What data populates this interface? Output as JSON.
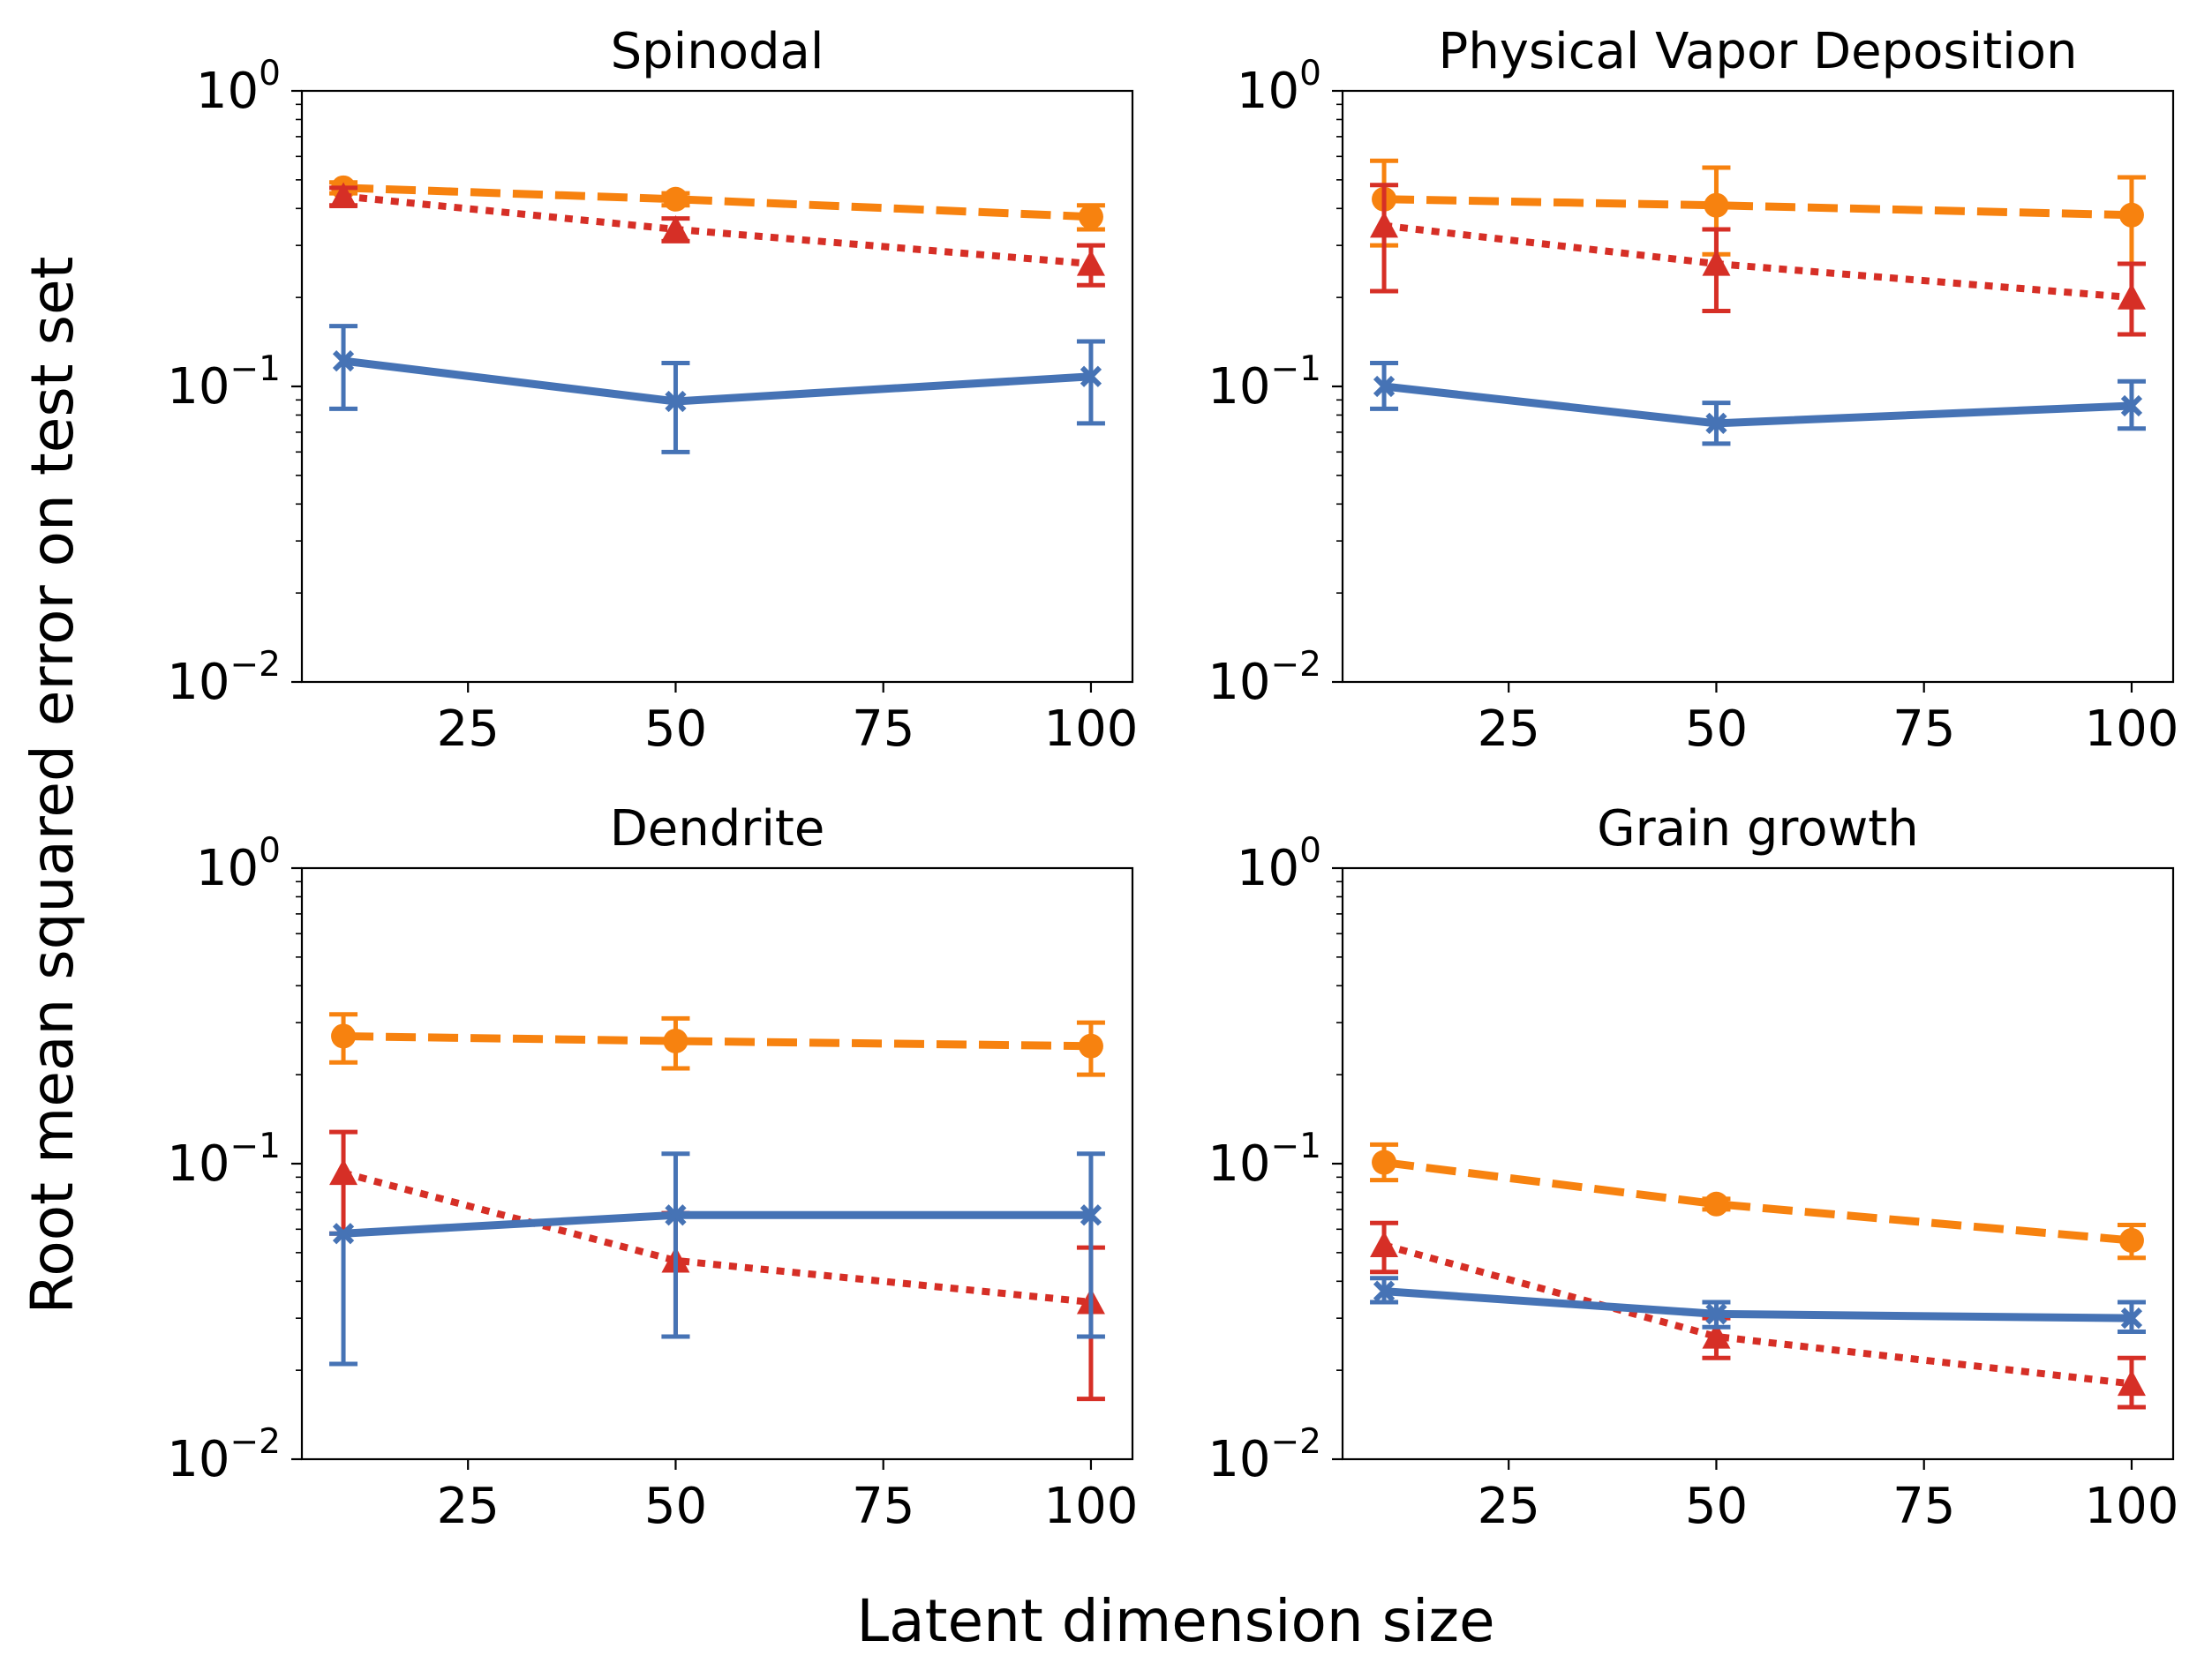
{
  "figure": {
    "xlabel": "Latent dimension size",
    "ylabel": "Root mean squared error on test set"
  },
  "chart_data": [
    {
      "type": "line",
      "title": "Spinodal",
      "xlabel": "",
      "ylabel": "",
      "x": [
        10,
        50,
        100
      ],
      "xlim": [
        5,
        105
      ],
      "xticks": [
        25,
        50,
        75,
        100
      ],
      "ylim": [
        0.01,
        1
      ],
      "yscale": "log",
      "yticks": [
        "10^0",
        "10^-1",
        "10^-2"
      ],
      "grid": false,
      "series": [
        {
          "color": "#f7820f",
          "marker": "circle",
          "linestyle": "dashed",
          "values": [
            0.47,
            0.43,
            0.375
          ],
          "err_low": [
            0.45,
            0.41,
            0.34
          ],
          "err_high": [
            0.49,
            0.45,
            0.41
          ]
        },
        {
          "color": "#d62f26",
          "marker": "triangle",
          "linestyle": "dotted",
          "values": [
            0.44,
            0.34,
            0.26
          ],
          "err_low": [
            0.41,
            0.31,
            0.22
          ],
          "err_high": [
            0.47,
            0.37,
            0.3
          ]
        },
        {
          "color": "#4673b5",
          "marker": "x",
          "linestyle": "solid",
          "values": [
            0.122,
            0.089,
            0.108
          ],
          "err_low": [
            0.084,
            0.06,
            0.075
          ],
          "err_high": [
            0.16,
            0.12,
            0.142
          ]
        }
      ]
    },
    {
      "type": "line",
      "title": "Physical Vapor Deposition",
      "xlabel": "",
      "ylabel": "",
      "x": [
        10,
        50,
        100
      ],
      "xlim": [
        5,
        105
      ],
      "xticks": [
        25,
        50,
        75,
        100
      ],
      "ylim": [
        0.01,
        1
      ],
      "yscale": "log",
      "yticks": [
        "10^0",
        "10^-1",
        "10^-2"
      ],
      "grid": false,
      "series": [
        {
          "color": "#f7820f",
          "marker": "circle",
          "linestyle": "dashed",
          "values": [
            0.43,
            0.41,
            0.38
          ],
          "err_low": [
            0.3,
            0.28,
            0.26
          ],
          "err_high": [
            0.58,
            0.55,
            0.51
          ]
        },
        {
          "color": "#d62f26",
          "marker": "triangle",
          "linestyle": "dotted",
          "values": [
            0.35,
            0.26,
            0.2
          ],
          "err_low": [
            0.21,
            0.18,
            0.15
          ],
          "err_high": [
            0.48,
            0.34,
            0.26
          ]
        },
        {
          "color": "#4673b5",
          "marker": "x",
          "linestyle": "solid",
          "values": [
            0.1,
            0.075,
            0.086
          ],
          "err_low": [
            0.084,
            0.064,
            0.072
          ],
          "err_high": [
            0.12,
            0.088,
            0.104
          ]
        }
      ]
    },
    {
      "type": "line",
      "title": "Dendrite",
      "xlabel": "",
      "ylabel": "",
      "x": [
        10,
        50,
        100
      ],
      "xlim": [
        5,
        105
      ],
      "xticks": [
        25,
        50,
        75,
        100
      ],
      "ylim": [
        0.01,
        1
      ],
      "yscale": "log",
      "yticks": [
        "10^0",
        "10^-1",
        "10^-2"
      ],
      "grid": false,
      "series": [
        {
          "color": "#f7820f",
          "marker": "circle",
          "linestyle": "dashed",
          "values": [
            0.27,
            0.26,
            0.25
          ],
          "err_low": [
            0.22,
            0.21,
            0.2
          ],
          "err_high": [
            0.32,
            0.31,
            0.3
          ]
        },
        {
          "color": "#d62f26",
          "marker": "triangle",
          "linestyle": "dotted",
          "values": [
            0.093,
            0.047,
            0.034
          ],
          "err_low": [
            0.058,
            0.026,
            0.016
          ],
          "err_high": [
            0.128,
            0.068,
            0.052
          ]
        },
        {
          "color": "#4673b5",
          "marker": "x",
          "linestyle": "solid",
          "values": [
            0.058,
            0.067,
            0.067
          ],
          "err_low": [
            0.021,
            0.026,
            0.026
          ],
          "err_high": [
            0.058,
            0.108,
            0.108
          ]
        }
      ]
    },
    {
      "type": "line",
      "title": "Grain growth",
      "xlabel": "",
      "ylabel": "",
      "x": [
        10,
        50,
        100
      ],
      "xlim": [
        5,
        105
      ],
      "xticks": [
        25,
        50,
        75,
        100
      ],
      "ylim": [
        0.01,
        1
      ],
      "yscale": "log",
      "yticks": [
        "10^0",
        "10^-1",
        "10^-2"
      ],
      "grid": false,
      "series": [
        {
          "color": "#f7820f",
          "marker": "circle",
          "linestyle": "dashed",
          "values": [
            0.101,
            0.073,
            0.055
          ],
          "err_low": [
            0.088,
            0.07,
            0.048
          ],
          "err_high": [
            0.116,
            0.076,
            0.062
          ]
        },
        {
          "color": "#d62f26",
          "marker": "triangle",
          "linestyle": "dotted",
          "values": [
            0.053,
            0.026,
            0.018
          ],
          "err_low": [
            0.043,
            0.022,
            0.015
          ],
          "err_high": [
            0.063,
            0.03,
            0.022
          ]
        },
        {
          "color": "#4673b5",
          "marker": "x",
          "linestyle": "solid",
          "values": [
            0.037,
            0.031,
            0.03
          ],
          "err_low": [
            0.034,
            0.028,
            0.027
          ],
          "err_high": [
            0.041,
            0.034,
            0.034
          ]
        }
      ]
    }
  ]
}
